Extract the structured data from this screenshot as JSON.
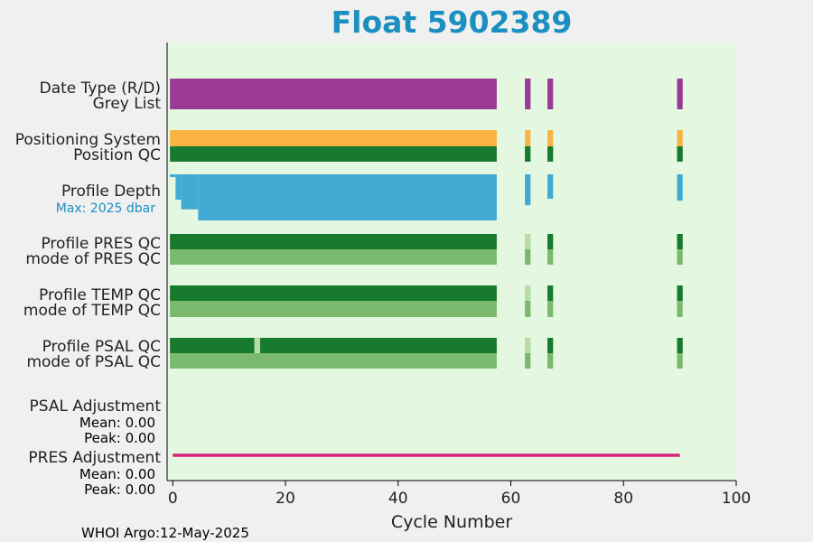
{
  "chart_data": {
    "type": "bar",
    "title": "Float 5902389",
    "xlabel": "Cycle Number",
    "xlim": [
      -1,
      100
    ],
    "x_ticks": [
      0,
      20,
      40,
      60,
      80,
      100
    ],
    "footer": "WHOI Argo:12-May-2025",
    "colors": {
      "title": "#1a8fc0",
      "plot_background": "#e4f7e0",
      "figure_background": "#f0f0f0",
      "purple": "#9a3a96",
      "orange": "#f9b342",
      "dark_green": "#187a2c",
      "light_green": "#7ab96e",
      "pale_green": "#b6dca8",
      "blue": "#42aad2",
      "magenta": "#d8237a"
    },
    "rows": [
      {
        "key": "data_type",
        "label": "Date Type (R/D)"
      },
      {
        "key": "grey_list",
        "label": "Grey List"
      },
      {
        "key": "positioning_system",
        "label": "Positioning System"
      },
      {
        "key": "position_qc",
        "label": "Position QC"
      },
      {
        "key": "profile_depth",
        "label": "Profile Depth",
        "sublabel": "Max: 2025 dbar"
      },
      {
        "key": "profile_pres_qc",
        "label": "Profile PRES QC"
      },
      {
        "key": "mode_pres_qc",
        "label": "mode of PRES QC"
      },
      {
        "key": "profile_temp_qc",
        "label": "Profile TEMP QC"
      },
      {
        "key": "mode_temp_qc",
        "label": "mode of TEMP QC"
      },
      {
        "key": "profile_psal_qc",
        "label": "Profile PSAL QC"
      },
      {
        "key": "mode_psal_qc",
        "label": "mode of PSAL QC"
      },
      {
        "key": "psal_adjustment",
        "label": "PSAL Adjustment",
        "mean": "Mean: 0.00",
        "peak": "Peak: 0.00"
      },
      {
        "key": "pres_adjustment",
        "label": "PRES Adjustment",
        "mean": "Mean: 0.00",
        "peak": "Peak: 0.00"
      }
    ],
    "cycles_main": [
      0,
      57
    ],
    "cycles_extra": [
      63,
      67,
      90
    ],
    "series": {
      "data_type": {
        "color": "purple",
        "segments": [
          [
            0,
            57
          ],
          [
            63,
            63
          ],
          [
            67,
            67
          ],
          [
            90,
            90
          ]
        ]
      },
      "positioning_system": {
        "color": "orange",
        "segments": [
          [
            0,
            57
          ],
          [
            63,
            63
          ],
          [
            67,
            67
          ],
          [
            90,
            90
          ]
        ]
      },
      "position_qc": {
        "color": "dark_green",
        "segments": [
          [
            0,
            57
          ],
          [
            63,
            63
          ],
          [
            67,
            67
          ],
          [
            90,
            90
          ]
        ]
      },
      "profile_depth": {
        "color": "blue",
        "max_dbar": 2025,
        "steps": [
          {
            "from": 0,
            "to": 0,
            "fraction": 0.06
          },
          {
            "from": 1,
            "to": 1,
            "fraction": 0.55
          },
          {
            "from": 2,
            "to": 4,
            "fraction": 0.76
          },
          {
            "from": 5,
            "to": 57,
            "fraction": 1.0
          },
          {
            "from": 63,
            "to": 63,
            "fraction": 0.67
          },
          {
            "from": 67,
            "to": 67,
            "fraction": 0.53
          },
          {
            "from": 90,
            "to": 90,
            "fraction": 0.57
          }
        ]
      },
      "profile_pres_qc": {
        "segments": [
          [
            0,
            57,
            "dark_green"
          ],
          [
            63,
            63,
            "pale_green"
          ],
          [
            67,
            67,
            "dark_green"
          ],
          [
            90,
            90,
            "dark_green"
          ]
        ]
      },
      "mode_pres_qc": {
        "segments": [
          [
            0,
            57,
            "light_green"
          ],
          [
            63,
            63,
            "light_green"
          ],
          [
            67,
            67,
            "light_green"
          ],
          [
            90,
            90,
            "light_green"
          ]
        ]
      },
      "profile_temp_qc": {
        "segments": [
          [
            0,
            57,
            "dark_green"
          ],
          [
            63,
            63,
            "pale_green"
          ],
          [
            67,
            67,
            "dark_green"
          ],
          [
            90,
            90,
            "dark_green"
          ]
        ]
      },
      "mode_temp_qc": {
        "segments": [
          [
            0,
            57,
            "light_green"
          ],
          [
            63,
            63,
            "light_green"
          ],
          [
            67,
            67,
            "light_green"
          ],
          [
            90,
            90,
            "light_green"
          ]
        ]
      },
      "profile_psal_qc": {
        "segments": [
          [
            0,
            14,
            "dark_green"
          ],
          [
            15,
            15,
            "pale_green"
          ],
          [
            16,
            57,
            "dark_green"
          ],
          [
            63,
            63,
            "pale_green"
          ],
          [
            67,
            67,
            "dark_green"
          ],
          [
            90,
            90,
            "dark_green"
          ]
        ]
      },
      "mode_psal_qc": {
        "segments": [
          [
            0,
            57,
            "light_green"
          ],
          [
            63,
            63,
            "light_green"
          ],
          [
            67,
            67,
            "light_green"
          ],
          [
            90,
            90,
            "light_green"
          ]
        ]
      },
      "pres_adjustment": {
        "color": "magenta",
        "line": [
          0,
          90
        ],
        "value": 0.0
      }
    },
    "grid": false
  }
}
